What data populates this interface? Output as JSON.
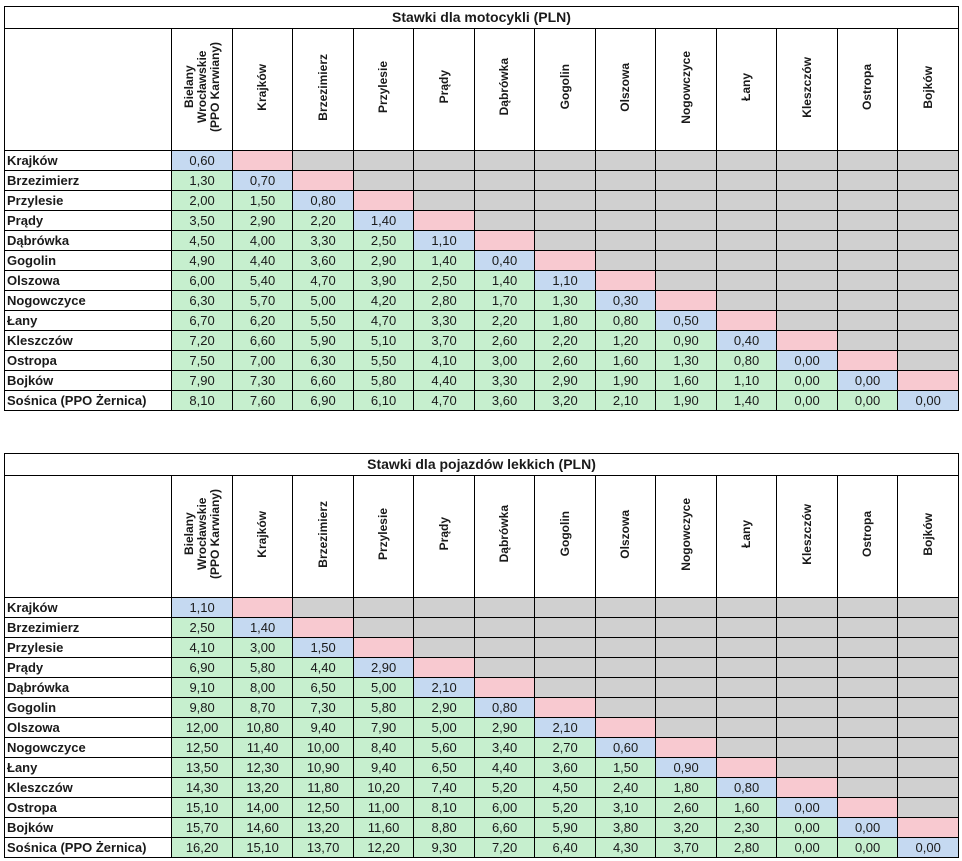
{
  "columns": [
    "Bielany\nWrocławskie\n(PPO Karwiany)",
    "Krajków",
    "Brzezimierz",
    "Przylesie",
    "Prądy",
    "Dąbrówka",
    "Gogolin",
    "Olszowa",
    "Nogowczyce",
    "Łany",
    "Kleszczów",
    "Ostropa",
    "Bojków"
  ],
  "rows": [
    "Krajków",
    "Brzezimierz",
    "Przylesie",
    "Prądy",
    "Dąbrówka",
    "Gogolin",
    "Olszowa",
    "Nogowczyce",
    "Łany",
    "Kleszczów",
    "Ostropa",
    "Bojków",
    "Sośnica (PPO Żernica)"
  ],
  "colors": {
    "green": "#c6efce",
    "blue": "#c5d9f1",
    "pink": "#f8c9d0",
    "grey": "#d0d0d0"
  },
  "tables": [
    {
      "title": "Stawki dla motocykli (PLN)",
      "values": [
        [
          "0,60"
        ],
        [
          "1,30",
          "0,70"
        ],
        [
          "2,00",
          "1,50",
          "0,80"
        ],
        [
          "3,50",
          "2,90",
          "2,20",
          "1,40"
        ],
        [
          "4,50",
          "4,00",
          "3,30",
          "2,50",
          "1,10"
        ],
        [
          "4,90",
          "4,40",
          "3,60",
          "2,90",
          "1,40",
          "0,40"
        ],
        [
          "6,00",
          "5,40",
          "4,70",
          "3,90",
          "2,50",
          "1,40",
          "1,10"
        ],
        [
          "6,30",
          "5,70",
          "5,00",
          "4,20",
          "2,80",
          "1,70",
          "1,30",
          "0,30"
        ],
        [
          "6,70",
          "6,20",
          "5,50",
          "4,70",
          "3,30",
          "2,20",
          "1,80",
          "0,80",
          "0,50"
        ],
        [
          "7,20",
          "6,60",
          "5,90",
          "5,10",
          "3,70",
          "2,60",
          "2,20",
          "1,20",
          "0,90",
          "0,40"
        ],
        [
          "7,50",
          "7,00",
          "6,30",
          "5,50",
          "4,10",
          "3,00",
          "2,60",
          "1,60",
          "1,30",
          "0,80",
          "0,00"
        ],
        [
          "7,90",
          "7,30",
          "6,60",
          "5,80",
          "4,40",
          "3,30",
          "2,90",
          "1,90",
          "1,60",
          "1,10",
          "0,00",
          "0,00"
        ],
        [
          "8,10",
          "7,60",
          "6,90",
          "6,10",
          "4,70",
          "3,60",
          "3,20",
          "2,10",
          "1,90",
          "1,40",
          "0,00",
          "0,00",
          "0,00"
        ]
      ]
    },
    {
      "title": "Stawki dla pojazdów lekkich (PLN)",
      "values": [
        [
          "1,10"
        ],
        [
          "2,50",
          "1,40"
        ],
        [
          "4,10",
          "3,00",
          "1,50"
        ],
        [
          "6,90",
          "5,80",
          "4,40",
          "2,90"
        ],
        [
          "9,10",
          "8,00",
          "6,50",
          "5,00",
          "2,10"
        ],
        [
          "9,80",
          "8,70",
          "7,30",
          "5,80",
          "2,90",
          "0,80"
        ],
        [
          "12,00",
          "10,80",
          "9,40",
          "7,90",
          "5,00",
          "2,90",
          "2,10"
        ],
        [
          "12,50",
          "11,40",
          "10,00",
          "8,40",
          "5,60",
          "3,40",
          "2,70",
          "0,60"
        ],
        [
          "13,50",
          "12,30",
          "10,90",
          "9,40",
          "6,50",
          "4,40",
          "3,60",
          "1,50",
          "0,90"
        ],
        [
          "14,30",
          "13,20",
          "11,80",
          "10,20",
          "7,40",
          "5,20",
          "4,50",
          "2,40",
          "1,80",
          "0,80"
        ],
        [
          "15,10",
          "14,00",
          "12,50",
          "11,00",
          "8,10",
          "6,00",
          "5,20",
          "3,10",
          "2,60",
          "1,60",
          "0,00"
        ],
        [
          "15,70",
          "14,60",
          "13,20",
          "11,60",
          "8,80",
          "6,60",
          "5,90",
          "3,80",
          "3,20",
          "2,30",
          "0,00",
          "0,00"
        ],
        [
          "16,20",
          "15,10",
          "13,70",
          "12,20",
          "9,30",
          "7,20",
          "6,40",
          "4,30",
          "3,70",
          "2,80",
          "0,00",
          "0,00",
          "0,00"
        ]
      ]
    }
  ]
}
